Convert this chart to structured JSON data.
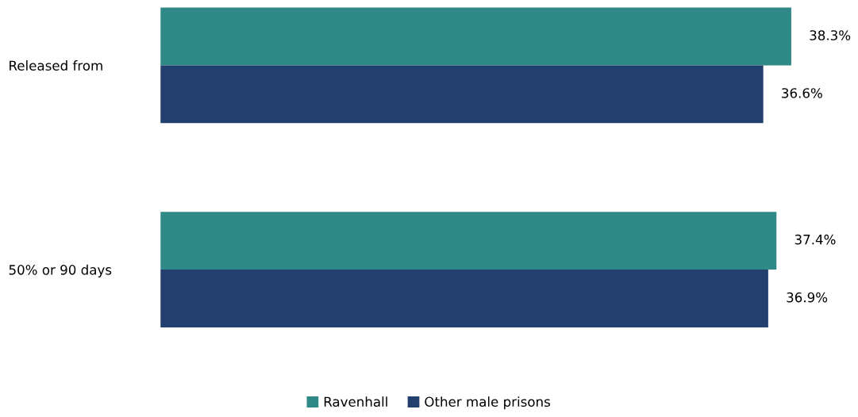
{
  "chart_data": {
    "type": "bar",
    "orientation": "horizontal",
    "categories": [
      "Released from",
      "50% or 90 days"
    ],
    "series": [
      {
        "name": "Ravenhall",
        "color": "#2e8987",
        "values": [
          38.3,
          37.4
        ],
        "value_labels": [
          "38.3%",
          "37.4%"
        ]
      },
      {
        "name": "Other male prisons",
        "color": "#233f6e",
        "values": [
          36.6,
          36.9
        ],
        "value_labels": [
          "36.6%",
          "36.9%"
        ]
      }
    ],
    "legend": "bottom",
    "grid": false
  }
}
